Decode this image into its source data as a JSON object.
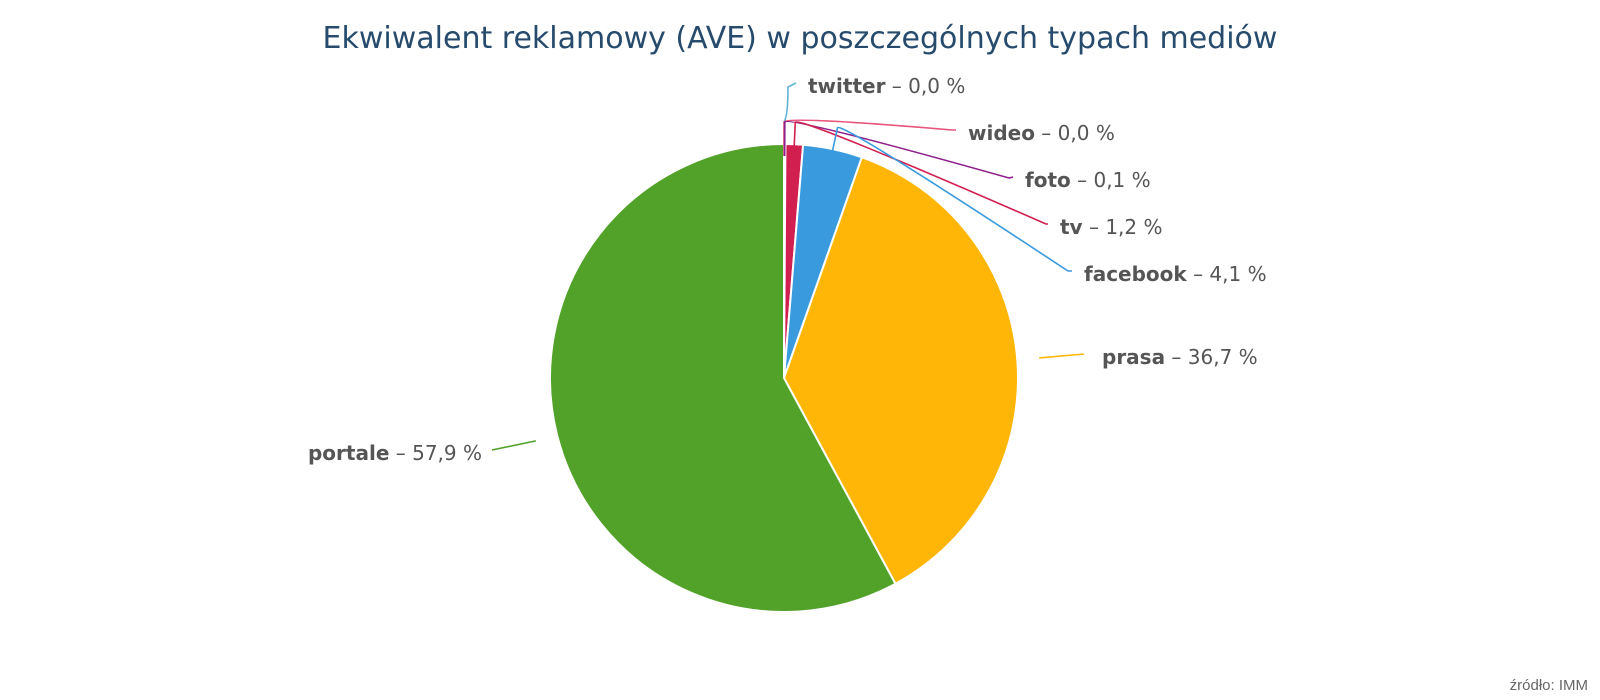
{
  "chart_data": {
    "type": "pie",
    "title": "Ekwiwalent reklamowy (AVE) w poszczególnych typach mediów",
    "value_suffix": " %",
    "label_separator": " – ",
    "slices": [
      {
        "name": "twitter",
        "label": "0,0",
        "value": 0.0,
        "color": "#5fb4d8"
      },
      {
        "name": "wideo",
        "label": "0,0",
        "value": 0.0,
        "color": "#e8557b"
      },
      {
        "name": "foto",
        "label": "0,1",
        "value": 0.1,
        "color": "#8e1f8c"
      },
      {
        "name": "tv",
        "label": "1,2",
        "value": 1.2,
        "color": "#d11f4f"
      },
      {
        "name": "facebook",
        "label": "4,1",
        "value": 4.1,
        "color": "#3a9ade"
      },
      {
        "name": "prasa",
        "label": "36,7",
        "value": 36.7,
        "color": "#ffb606"
      },
      {
        "name": "portale",
        "label": "57,9",
        "value": 57.9,
        "color": "#52a22a"
      }
    ]
  },
  "source_text": "źródło: IMM"
}
